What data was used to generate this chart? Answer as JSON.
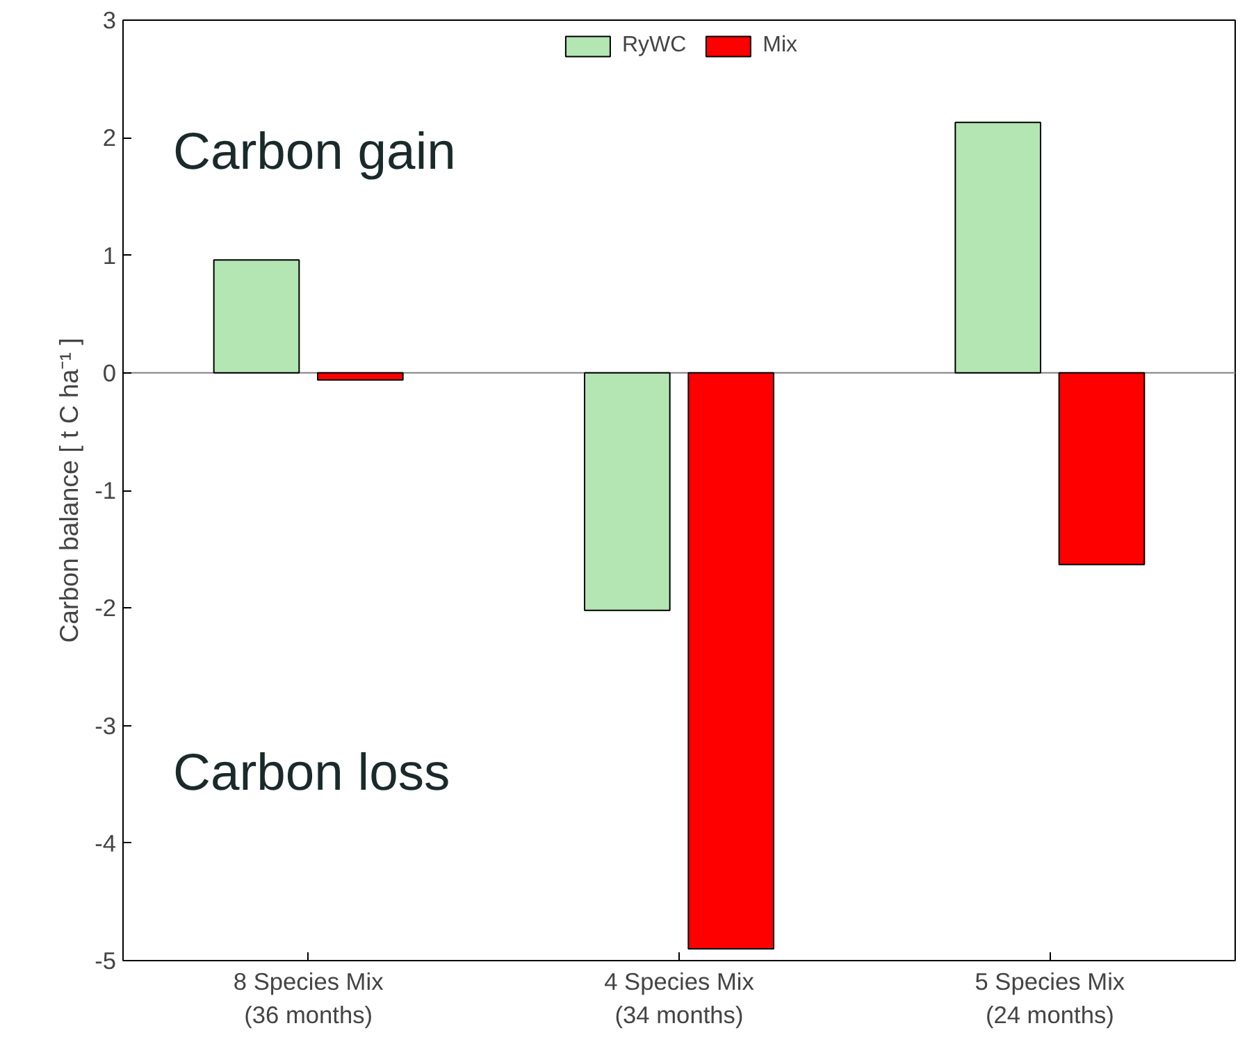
{
  "chart_data": {
    "type": "bar",
    "ylabel": "Carbon balance [ t C ha⁻¹ ]",
    "categories": [
      "8 Species Mix\n(36 months)",
      "4 Species Mix\n(34 months)",
      "5 Species Mix\n(24 months)"
    ],
    "series": [
      {
        "name": "RyWC",
        "color": "#b3e6b3",
        "values": [
          0.96,
          -2.02,
          2.13
        ]
      },
      {
        "name": "Mix",
        "color": "#ff0000",
        "values": [
          -0.06,
          -4.9,
          -1.63
        ]
      }
    ],
    "ylim": [
      -5,
      3
    ],
    "yticks": [
      -5,
      -4,
      -3,
      -2,
      -1,
      0,
      1,
      2,
      3
    ],
    "ref_lines": [
      {
        "axis": "y",
        "value": 0,
        "color": "#808080"
      }
    ],
    "annotations": [
      "Carbon gain",
      "Carbon loss"
    ],
    "legend": "top",
    "grid": false
  }
}
